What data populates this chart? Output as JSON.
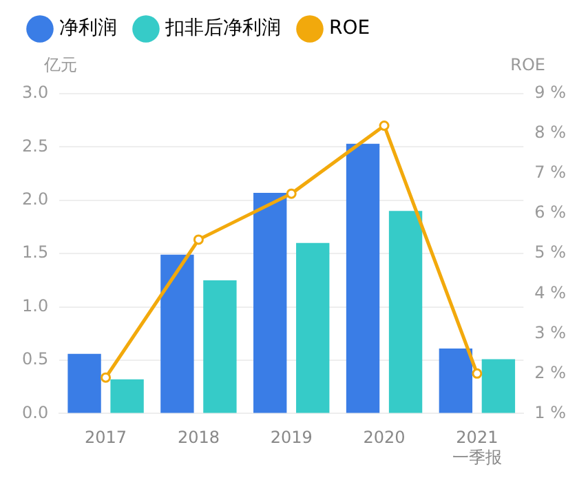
{
  "chart_data": {
    "type": "bar",
    "ylabel": "亿元",
    "y2label": "ROE",
    "categories": [
      "2017",
      "2018",
      "2019",
      "2020",
      "2021\n一季报"
    ],
    "series": [
      {
        "name": "净利润",
        "color": "#3a7de6",
        "values": [
          0.56,
          1.49,
          2.07,
          2.53,
          0.61
        ]
      },
      {
        "name": "扣非后净利润",
        "color": "#36cbc8",
        "values": [
          0.32,
          1.25,
          1.6,
          1.9,
          0.51
        ]
      },
      {
        "name": "ROE",
        "type": "line",
        "axis": "y2",
        "color": "#f2a90c",
        "marker": "circle",
        "values": [
          1.9,
          5.35,
          6.5,
          8.2,
          2.0
        ]
      }
    ],
    "ylim": [
      0,
      3
    ],
    "yticks": [
      {
        "value": 0,
        "label": "0.0"
      },
      0.5,
      {
        "value": 1,
        "label": "1.0"
      },
      1.5,
      {
        "value": 2,
        "label": "2.0"
      },
      2.5,
      {
        "value": 3,
        "label": "3.0"
      }
    ],
    "y2lim": [
      1,
      9
    ],
    "y2ticks": [
      {
        "value": 1,
        "label": "1 %"
      },
      {
        "value": 2,
        "label": "2 %"
      },
      {
        "value": 3,
        "label": "3 %"
      },
      {
        "value": 4,
        "label": "4 %"
      },
      {
        "value": 5,
        "label": "5 %"
      },
      {
        "value": 6,
        "label": "6 %"
      },
      {
        "value": 7,
        "label": "7 %"
      },
      {
        "value": 8,
        "label": "8 %"
      },
      {
        "value": 9,
        "label": "9 %"
      }
    ],
    "grid": "y",
    "legend": "top left"
  }
}
